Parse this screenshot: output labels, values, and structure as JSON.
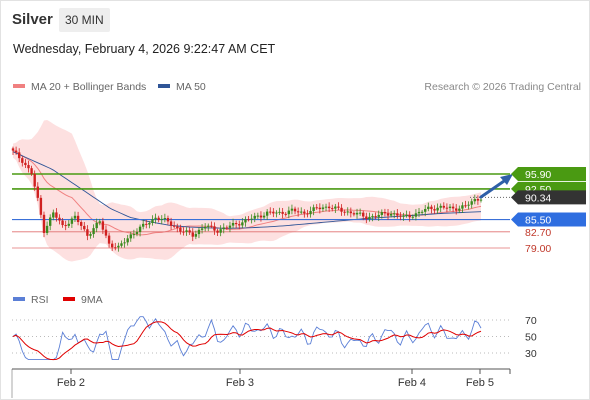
{
  "header": {
    "title": "Silver",
    "interval": "30 MIN"
  },
  "timestamp": "Wednesday, February 4, 2026 9:22:47 AM CET",
  "legend": {
    "ma20_label": "MA 20 + Bollinger Bands",
    "ma50_label": "MA 50",
    "copyright": "Research © 2026 Trading Central",
    "rsi_label": "RSI",
    "ma9_label": "9MA"
  },
  "colors": {
    "ma20": "#f08080",
    "bollinger_fill": "#fde0e0",
    "ma50": "#2f5597",
    "resistance": "#4a9a12",
    "pivot": "#3a70d8",
    "support": "#e07070",
    "rsi": "#5b7fd6",
    "rsi_ma": "#e00000",
    "candle_up": "#3a8a1e",
    "candle_down": "#d02020",
    "arrow": "#2f5fa8"
  },
  "levels": [
    {
      "value": "95.90",
      "type": "resistance"
    },
    {
      "value": "92.50",
      "type": "resistance"
    },
    {
      "value": "90.34",
      "type": "current"
    },
    {
      "value": "85.50",
      "type": "pivot"
    },
    {
      "value": "82.70",
      "type": "support"
    },
    {
      "value": "79.00",
      "type": "support"
    }
  ],
  "rsi_axis": [
    "70",
    "50",
    "30"
  ],
  "x_axis": [
    "Feb 2",
    "Feb 3",
    "Feb 4",
    "Feb 5"
  ]
}
